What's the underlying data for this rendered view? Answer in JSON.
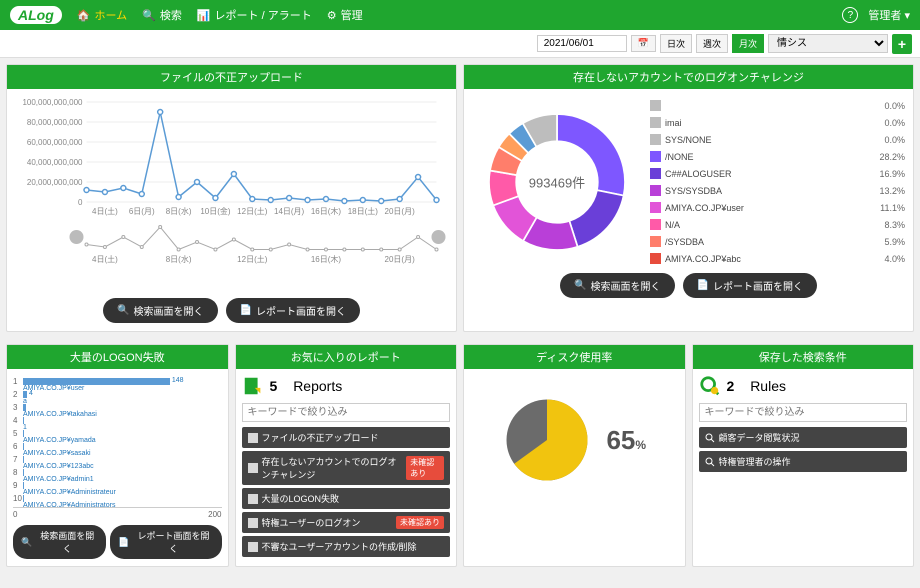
{
  "brand": "ALog",
  "nav": {
    "home": "ホーム",
    "search": "検索",
    "report": "レポート / アラート",
    "admin": "管理"
  },
  "user_label": "管理者",
  "toolbar": {
    "date": "2021/06/01",
    "day": "日次",
    "week": "週次",
    "month": "月次",
    "selector": "情シス"
  },
  "btn": {
    "open_search": "検索画面を開く",
    "open_report": "レポート画面を開く"
  },
  "filter_placeholder": "キーワードで絞り込み",
  "panel1": {
    "title": "ファイルの不正アップロード",
    "y_ticks": [
      "100,000,000,000",
      "80,000,000,000",
      "60,000,000,000",
      "40,000,000,000",
      "20,000,000,000",
      "0"
    ],
    "x_ticks": [
      "4日(土)",
      "6日(月)",
      "8日(水)",
      "10日(金)",
      "12日(土)",
      "14日(月)",
      "16日(木)",
      "18日(土)",
      "20日(月)"
    ],
    "x_ticks2": [
      "4日(土)",
      "",
      "8日(水)",
      "",
      "12日(土)",
      "",
      "16日(木)",
      "",
      "20日(月)"
    ],
    "points": [
      12,
      10,
      14,
      8,
      90,
      5,
      20,
      4,
      28,
      3,
      2,
      4,
      2,
      3,
      1,
      2,
      1,
      3,
      25,
      2
    ],
    "points2": [
      3,
      2,
      6,
      2,
      10,
      1,
      4,
      1,
      5,
      1,
      1,
      3,
      1,
      1,
      1,
      1,
      1,
      1,
      6,
      1
    ],
    "line_color": "#5b9bd5",
    "line_color2": "#aaa"
  },
  "panel2": {
    "title": "存在しないアカウントでのログオンチャレンジ",
    "center": "993469件",
    "slices": [
      {
        "label": "",
        "pct": 0.0,
        "color": "#bdbdbd"
      },
      {
        "label": "imai",
        "pct": 0.0,
        "color": "#bdbdbd"
      },
      {
        "label": "SYS/NONE",
        "pct": 0.0,
        "color": "#bdbdbd"
      },
      {
        "label": "/NONE",
        "pct": 28.2,
        "color": "#7e57ff"
      },
      {
        "label": "C##ALOGUSER",
        "pct": 16.9,
        "color": "#6a3fd8"
      },
      {
        "label": "SYS/SYSDBA",
        "pct": 13.2,
        "color": "#b93fd8"
      },
      {
        "label": "AMIYA.CO.JP¥user",
        "pct": 11.1,
        "color": "#e254d8"
      },
      {
        "label": "N/A",
        "pct": 8.3,
        "color": "#ff5aa8"
      },
      {
        "label": "/SYSDBA",
        "pct": 5.9,
        "color": "#ff7e6b"
      },
      {
        "label": "AMIYA.CO.JP¥abc",
        "pct": 4.0,
        "color": "#e74c3c"
      }
    ],
    "donut_segs": [
      {
        "color": "#7e57ff",
        "pct": 28.2
      },
      {
        "color": "#6a3fd8",
        "pct": 16.9
      },
      {
        "color": "#b93fd8",
        "pct": 13.2
      },
      {
        "color": "#e254d8",
        "pct": 11.1
      },
      {
        "color": "#ff5aa8",
        "pct": 8.3
      },
      {
        "color": "#ff7e6b",
        "pct": 5.9
      },
      {
        "color": "#ff9e5b",
        "pct": 4.0
      },
      {
        "color": "#5b9bd5",
        "pct": 4.0
      },
      {
        "color": "#bdbdbd",
        "pct": 8.4
      }
    ]
  },
  "panel3": {
    "title": "大量のLOGON失敗",
    "bars": [
      {
        "label": "AMIYA.CO.JP¥user",
        "v": 148,
        "text": "148"
      },
      {
        "label": "a",
        "v": 4,
        "text": "4"
      },
      {
        "label": "AMIYA.CO.JP¥takahasi",
        "v": 3
      },
      {
        "label": "1",
        "v": 1
      },
      {
        "label": "AMIYA.CO.JP¥yamada",
        "v": 1
      },
      {
        "label": "AMIYA.CO.JP¥sasaki",
        "v": 1
      },
      {
        "label": "AMIYA.CO.JP¥123abc",
        "v": 1
      },
      {
        "label": "AMIYA.CO.JP¥admin1",
        "v": 1
      },
      {
        "label": "AMIYA.CO.JP¥Administrateur",
        "v": 1
      },
      {
        "label": "AMIYA.CO.JP¥Administrators",
        "v": 1
      }
    ],
    "axis": [
      "0",
      "200"
    ]
  },
  "panel4": {
    "title": "お気に入りのレポート",
    "count": "5",
    "count_label": "Reports",
    "items": [
      {
        "label": "ファイルの不正アップロード",
        "badge": null
      },
      {
        "label": "存在しないアカウントでのログオンチャレンジ",
        "badge": "未確認あり"
      },
      {
        "label": "大量のLOGON失敗",
        "badge": null
      },
      {
        "label": "特権ユーザーのログオン",
        "badge": "未確認あり"
      },
      {
        "label": "不審なユーザーアカウントの作成/削除",
        "badge": null
      }
    ]
  },
  "panel5": {
    "title": "ディスク使用率",
    "pct": "65",
    "used_color": "#f1c40f",
    "free_color": "#6b6b6b"
  },
  "panel6": {
    "title": "保存した検索条件",
    "count": "2",
    "count_label": "Rules",
    "items": [
      {
        "label": "顧客データ閲覧状況"
      },
      {
        "label": "特権管理者の操作"
      }
    ]
  }
}
